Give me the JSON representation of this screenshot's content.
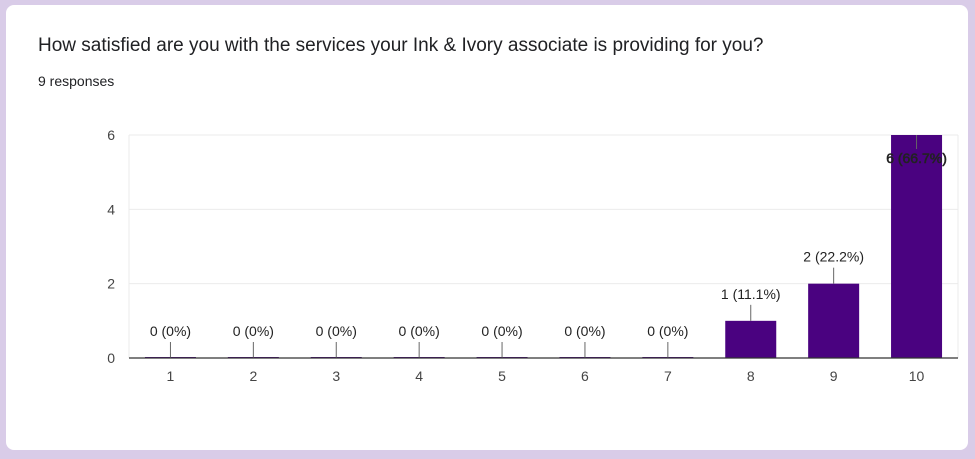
{
  "question": "How satisfied are you with the services your Ink & Ivory associate is providing for you?",
  "responses_text": "9 responses",
  "colors": {
    "bar": "#4a0280",
    "grid": "#ebebeb",
    "axis": "#333333",
    "background": "#d9cce8"
  },
  "chart_data": {
    "type": "bar",
    "title": "How satisfied are you with the services your Ink & Ivory associate is providing for you?",
    "xlabel": "",
    "ylabel": "",
    "categories": [
      "1",
      "2",
      "3",
      "4",
      "5",
      "6",
      "7",
      "8",
      "9",
      "10"
    ],
    "values": [
      0,
      0,
      0,
      0,
      0,
      0,
      0,
      1,
      2,
      6
    ],
    "data_labels": [
      "0 (0%)",
      "0 (0%)",
      "0 (0%)",
      "0 (0%)",
      "0 (0%)",
      "0 (0%)",
      "0 (0%)",
      "1 (11.1%)",
      "2 (22.2%)",
      "6 (66.7%)"
    ],
    "yticks": [
      0,
      2,
      4,
      6
    ],
    "ylim": [
      0,
      6
    ],
    "grid": true,
    "legend": "none"
  }
}
